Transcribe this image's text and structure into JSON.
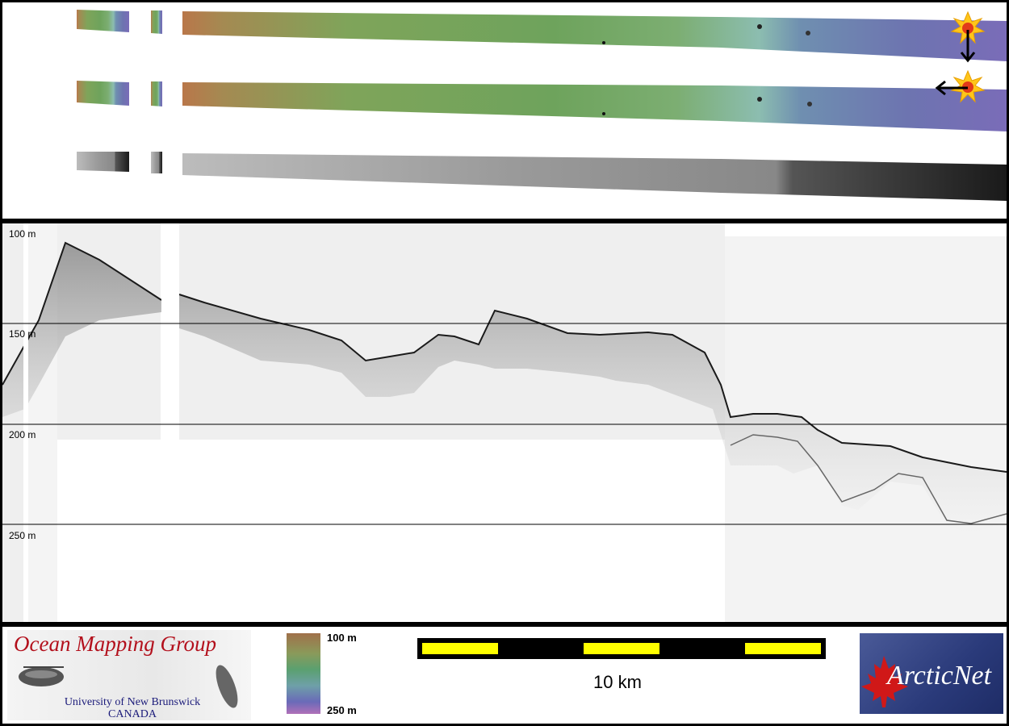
{
  "profile": {
    "depth_labels": [
      "100 m",
      "150 m",
      "200 m",
      "250 m"
    ]
  },
  "footer": {
    "omg": {
      "title": "Ocean Mapping Group",
      "university": "University of New Brunswick",
      "country": "CANADA"
    },
    "colorbar": {
      "top_label": "100 m",
      "bottom_label": "250 m"
    },
    "scalebar": {
      "label": "10 km"
    },
    "arcticnet": {
      "text": "ArcticNet"
    }
  },
  "colors": {
    "scale_yellow": "#ffff00",
    "omg_red": "#b3101c",
    "arctic_blue": "#2a3a7a",
    "maple_red": "#d01818"
  }
}
